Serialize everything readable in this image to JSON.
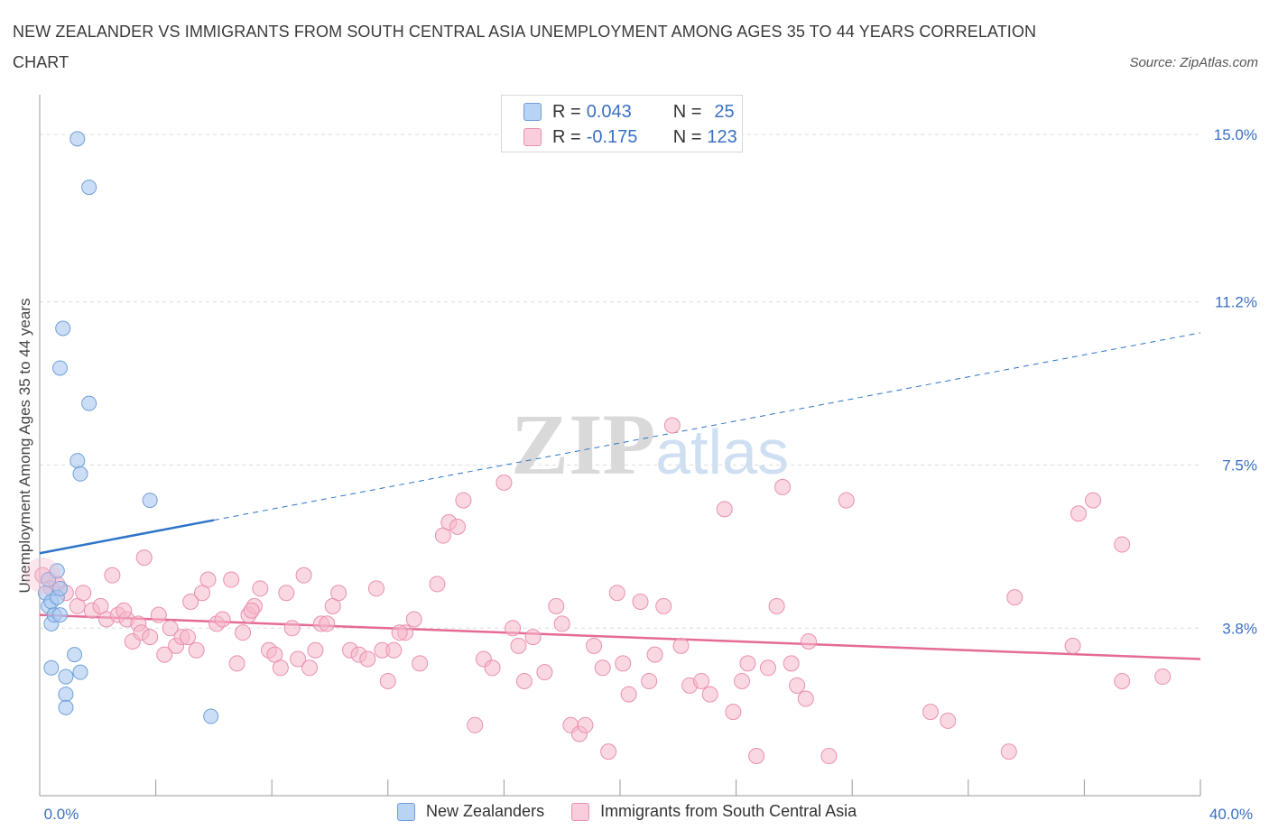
{
  "title": "NEW ZEALANDER VS IMMIGRANTS FROM SOUTH CENTRAL ASIA UNEMPLOYMENT AMONG AGES 35 TO 44 YEARS CORRELATION CHART",
  "source": "Source: ZipAtlas.com",
  "watermark": "ZIPatlas",
  "colors": {
    "blue_fill": "#a9c8f0",
    "blue_stroke": "#6f9fd8",
    "blue_line": "#2e74c9",
    "pink_fill": "#f6b8cb",
    "pink_stroke": "#e990ae",
    "pink_line": "#e56a94",
    "axis_value": "#3a6fc4",
    "grid": "#dddddd"
  },
  "legend": {
    "rows": [
      {
        "r_label": "R = ",
        "r_value": "0.043",
        "n_label": "N = ",
        "n_value": "25"
      },
      {
        "r_label": "R = ",
        "r_value": "-0.175",
        "n_label": "N = ",
        "n_value": "123"
      }
    ]
  },
  "chart_data": {
    "type": "scatter",
    "title": "NEW ZEALANDER VS IMMIGRANTS FROM SOUTH CENTRAL ASIA UNEMPLOYMENT AMONG AGES 35 TO 44 YEARS CORRELATION CHART",
    "xlabel": "",
    "ylabel": "Unemployment Among Ages 35 to 44 years",
    "xlim": [
      0,
      40
    ],
    "ylim": [
      0,
      15.9
    ],
    "x_tick_labels": [
      "0.0%",
      "40.0%"
    ],
    "y_tick_values": [
      3.8,
      7.5,
      11.2,
      15.0
    ],
    "y_tick_labels": [
      "3.8%",
      "7.5%",
      "11.2%",
      "15.0%"
    ],
    "grid": true,
    "legend_position": "top-center",
    "series": [
      {
        "name": "New Zealanders",
        "color": "#a9c8f0",
        "trend": {
          "x0": 0,
          "y0": 5.5,
          "x1": 40,
          "y1": 10.5,
          "solid_until_x": 6
        },
        "points": [
          [
            0.2,
            4.6
          ],
          [
            0.3,
            4.9
          ],
          [
            0.3,
            4.3
          ],
          [
            0.4,
            4.4
          ],
          [
            0.4,
            3.9
          ],
          [
            0.5,
            4.1
          ],
          [
            0.6,
            5.1
          ],
          [
            0.6,
            4.5
          ],
          [
            0.7,
            4.1
          ],
          [
            0.7,
            4.7
          ],
          [
            0.8,
            10.6
          ],
          [
            0.7,
            9.7
          ],
          [
            1.3,
            14.9
          ],
          [
            1.3,
            7.6
          ],
          [
            1.4,
            7.3
          ],
          [
            1.7,
            13.8
          ],
          [
            1.7,
            8.9
          ],
          [
            3.8,
            6.7
          ],
          [
            1.2,
            3.2
          ],
          [
            0.4,
            2.9
          ],
          [
            1.4,
            2.8
          ],
          [
            0.9,
            2.7
          ],
          [
            0.9,
            2.3
          ],
          [
            0.9,
            2.0
          ],
          [
            5.9,
            1.8
          ]
        ]
      },
      {
        "name": "Immigrants from South Central Asia",
        "color": "#f6b8cb",
        "trend": {
          "x0": 0,
          "y0": 4.1,
          "x1": 40,
          "y1": 3.1
        },
        "points": [
          [
            0.1,
            5.0
          ],
          [
            0.4,
            4.7
          ],
          [
            0.6,
            4.8
          ],
          [
            0.9,
            4.6
          ],
          [
            1.3,
            4.3
          ],
          [
            1.5,
            4.6
          ],
          [
            1.8,
            4.2
          ],
          [
            2.1,
            4.3
          ],
          [
            2.3,
            4.0
          ],
          [
            2.5,
            5.0
          ],
          [
            2.7,
            4.1
          ],
          [
            3.0,
            4.0
          ],
          [
            3.2,
            3.5
          ],
          [
            3.4,
            3.9
          ],
          [
            3.5,
            3.7
          ],
          [
            3.6,
            5.4
          ],
          [
            3.8,
            3.6
          ],
          [
            4.1,
            4.1
          ],
          [
            4.3,
            3.2
          ],
          [
            4.5,
            3.8
          ],
          [
            4.7,
            3.4
          ],
          [
            4.9,
            3.6
          ],
          [
            5.1,
            3.6
          ],
          [
            5.2,
            4.4
          ],
          [
            5.4,
            3.3
          ],
          [
            5.6,
            4.6
          ],
          [
            5.8,
            4.9
          ],
          [
            6.1,
            3.9
          ],
          [
            6.3,
            4.0
          ],
          [
            6.6,
            4.9
          ],
          [
            6.8,
            3.0
          ],
          [
            7.0,
            3.7
          ],
          [
            7.2,
            4.1
          ],
          [
            7.4,
            4.3
          ],
          [
            7.6,
            4.7
          ],
          [
            7.9,
            3.3
          ],
          [
            8.1,
            3.2
          ],
          [
            8.3,
            2.9
          ],
          [
            8.5,
            4.6
          ],
          [
            8.7,
            3.8
          ],
          [
            8.9,
            3.1
          ],
          [
            9.1,
            5.0
          ],
          [
            9.3,
            2.9
          ],
          [
            9.5,
            3.3
          ],
          [
            9.7,
            3.9
          ],
          [
            9.9,
            3.9
          ],
          [
            10.1,
            4.3
          ],
          [
            10.3,
            4.6
          ],
          [
            10.7,
            3.3
          ],
          [
            11.0,
            3.2
          ],
          [
            11.3,
            3.1
          ],
          [
            11.6,
            4.7
          ],
          [
            11.8,
            3.3
          ],
          [
            12.0,
            2.6
          ],
          [
            12.2,
            3.3
          ],
          [
            12.6,
            3.7
          ],
          [
            12.9,
            4.0
          ],
          [
            13.1,
            3.0
          ],
          [
            13.7,
            4.8
          ],
          [
            13.9,
            5.9
          ],
          [
            14.1,
            6.2
          ],
          [
            14.4,
            6.1
          ],
          [
            14.6,
            6.7
          ],
          [
            15.0,
            1.6
          ],
          [
            15.3,
            3.1
          ],
          [
            15.6,
            2.9
          ],
          [
            16.0,
            7.1
          ],
          [
            16.3,
            3.8
          ],
          [
            16.5,
            3.4
          ],
          [
            16.7,
            2.6
          ],
          [
            17.0,
            3.6
          ],
          [
            17.4,
            2.8
          ],
          [
            17.8,
            4.3
          ],
          [
            18.0,
            3.9
          ],
          [
            18.3,
            1.6
          ],
          [
            18.6,
            1.4
          ],
          [
            18.8,
            1.6
          ],
          [
            19.1,
            3.4
          ],
          [
            19.4,
            2.9
          ],
          [
            19.6,
            1.0
          ],
          [
            19.9,
            4.6
          ],
          [
            20.1,
            3.0
          ],
          [
            20.3,
            2.3
          ],
          [
            20.7,
            4.4
          ],
          [
            21.0,
            2.6
          ],
          [
            21.2,
            3.2
          ],
          [
            21.5,
            4.3
          ],
          [
            21.8,
            8.4
          ],
          [
            22.1,
            3.4
          ],
          [
            22.4,
            2.5
          ],
          [
            22.8,
            2.6
          ],
          [
            23.1,
            2.3
          ],
          [
            23.6,
            6.5
          ],
          [
            23.9,
            1.9
          ],
          [
            24.2,
            2.6
          ],
          [
            24.4,
            3.0
          ],
          [
            24.7,
            0.9
          ],
          [
            25.1,
            2.9
          ],
          [
            25.4,
            4.3
          ],
          [
            25.6,
            7.0
          ],
          [
            25.9,
            3.0
          ],
          [
            26.1,
            2.5
          ],
          [
            26.4,
            2.2
          ],
          [
            26.5,
            3.5
          ],
          [
            27.2,
            0.9
          ],
          [
            27.8,
            6.7
          ],
          [
            30.7,
            1.9
          ],
          [
            31.3,
            1.7
          ],
          [
            33.4,
            1.0
          ],
          [
            33.6,
            4.5
          ],
          [
            35.6,
            3.4
          ],
          [
            35.8,
            6.4
          ],
          [
            36.3,
            6.7
          ],
          [
            37.3,
            2.6
          ],
          [
            37.3,
            5.7
          ],
          [
            38.7,
            2.7
          ],
          [
            2.9,
            4.2
          ],
          [
            7.3,
            4.2
          ],
          [
            12.4,
            3.7
          ]
        ]
      }
    ]
  },
  "bottom_legend": {
    "items": [
      "New Zealanders",
      "Immigrants from South Central Asia"
    ]
  }
}
